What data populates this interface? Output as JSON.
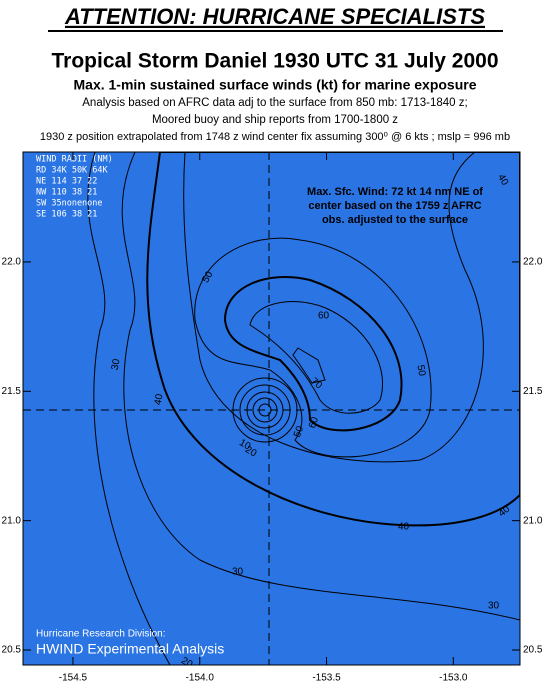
{
  "header": {
    "banner": "ATTENTION: HURRICANE SPECIALISTS",
    "title": "Tropical Storm Daniel  1930 UTC 31 July 2000",
    "subtitle": "Max. 1-min sustained surface winds (kt) for marine exposure",
    "notes": [
      "Analysis based on AFRC data adj to the surface from 850 mb: 1713-1840 z;",
      "Moored buoy and ship reports from 1700-1800 z",
      "1930 z position extrapolated from 1748 z wind center fix assuming 300⁰ @ 6 kts ; mslp = 996 mb"
    ]
  },
  "map": {
    "xlim": [
      -154.697,
      -152.737
    ],
    "ylim": [
      20.442,
      22.425
    ],
    "xticks": [
      -154.5,
      {
        "value": -154,
        "label": "-154.0"
      },
      -153.5,
      {
        "value": -153,
        "label": "-153.0"
      }
    ],
    "yticks": [
      {
        "value": 20.5,
        "label": "20.5"
      },
      {
        "value": 21,
        "label": "21.0"
      },
      21.5,
      {
        "value": 22,
        "label": "22.0"
      }
    ],
    "wind_radii": [
      "WIND RADII (NM)",
      "RD  34K  50K  64K",
      "NE  114   37   22",
      "NW  110   38   21",
      "SW   35nonenone",
      "SE  106   38   21"
    ],
    "annotation": [
      "Max. Sfc. Wind: 72 kt 14 nm NE of",
      "center based on the 1759 z AFRC",
      "obs. adjusted to the surface"
    ],
    "contour_labels": [
      30,
      40,
      50,
      60,
      70,
      50,
      40,
      40,
      40,
      30,
      30,
      20,
      50,
      60,
      10,
      20
    ],
    "credit": [
      "Hurricane Research Division:",
      "HWIND Experimental Analysis"
    ]
  }
}
